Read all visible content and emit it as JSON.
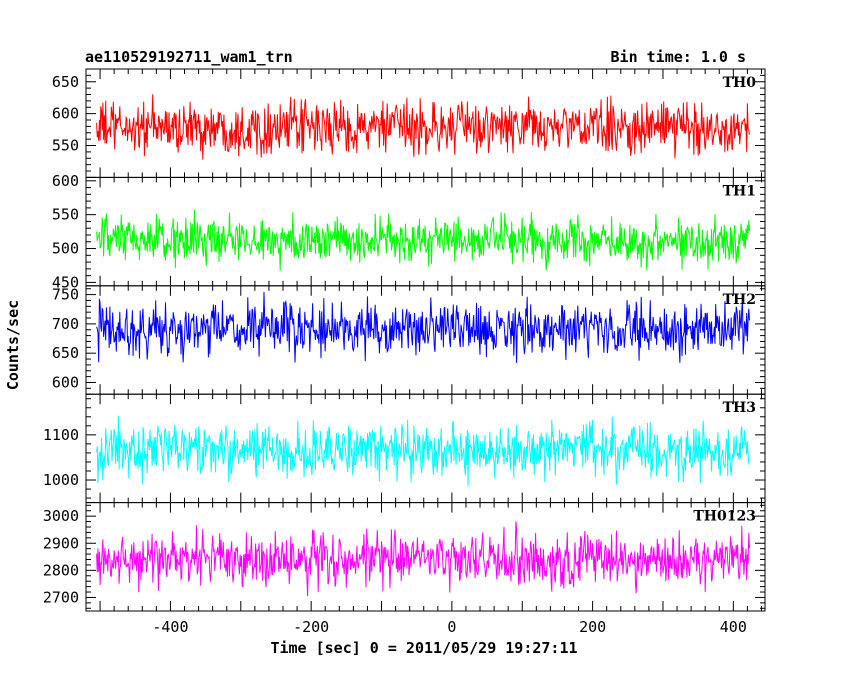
{
  "header": {
    "title": "ae110529192711_wam1_trn",
    "bin_time": "Bin time: 1.0 s"
  },
  "chart_data": {
    "type": "line",
    "title": "ae110529192711_wam1_trn",
    "xlabel": "Time [sec] 0 = 2011/05/29 19:27:11",
    "ylabel": "Counts/sec",
    "xlim": [
      -520,
      445
    ],
    "x_range": [
      -505,
      423
    ],
    "x_step": 1,
    "xticks": [
      -400,
      -200,
      0,
      200,
      400
    ],
    "grid": false,
    "panels": [
      {
        "name": "TH0",
        "color": "#ff0000",
        "ylim": [
          500,
          670
        ],
        "yticks": [
          550,
          600,
          650
        ],
        "mean": 578,
        "noise_amplitude": 38
      },
      {
        "name": "TH1",
        "color": "#00ff00",
        "ylim": [
          445,
          605
        ],
        "yticks": [
          450,
          500,
          550,
          600
        ],
        "mean": 512,
        "noise_amplitude": 32
      },
      {
        "name": "TH2",
        "color": "#0000ff",
        "ylim": [
          580,
          765
        ],
        "yticks": [
          600,
          650,
          700,
          750
        ],
        "mean": 690,
        "noise_amplitude": 42
      },
      {
        "name": "TH3",
        "color": "#00ffff",
        "ylim": [
          950,
          1190
        ],
        "yticks": [
          1000,
          1100
        ],
        "mean": 1065,
        "noise_amplitude": 55
      },
      {
        "name": "TH0123",
        "color": "#ff00ff",
        "ylim": [
          2650,
          3050
        ],
        "yticks": [
          2700,
          2800,
          2900,
          3000
        ],
        "mean": 2840,
        "noise_amplitude": 95
      }
    ]
  }
}
